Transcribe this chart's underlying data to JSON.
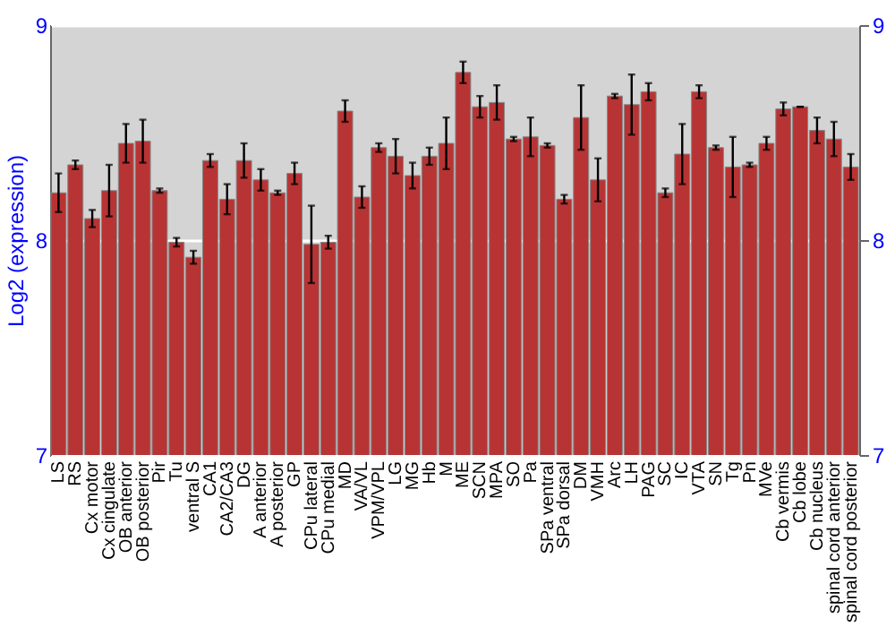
{
  "chart_data": {
    "type": "bar",
    "ylabel": "Log2 (expression)",
    "categories": [
      "LS",
      "RS",
      "Cx motor",
      "Cx cingulate",
      "OB anterior",
      "OB posterior",
      "Pir",
      "Tu",
      "ventral S",
      "CA1",
      "CA2/CA3",
      "DG",
      "A anterior",
      "A posterior",
      "GP",
      "CPu lateral",
      "CPu medial",
      "MD",
      "VA/VL",
      "VPM/VPL",
      "LG",
      "MG",
      "Hb",
      "M",
      "ME",
      "SCN",
      "MPA",
      "SO",
      "Pa",
      "SPa ventral",
      "SPa dorsal",
      "DM",
      "VMH",
      "Arc",
      "LH",
      "PAG",
      "SC",
      "IC",
      "VTA",
      "SN",
      "Tg",
      "Pn",
      "MVe",
      "Cb vermis",
      "Cb lobe",
      "Cb nucleus",
      "spinal cord anterior",
      "spinal cord posterior"
    ],
    "values": [
      8.22,
      8.35,
      8.1,
      8.23,
      8.45,
      8.46,
      8.23,
      7.99,
      7.92,
      8.37,
      8.19,
      8.37,
      8.28,
      8.22,
      8.31,
      7.98,
      7.99,
      8.6,
      8.2,
      8.43,
      8.39,
      8.3,
      8.39,
      8.45,
      8.78,
      8.62,
      8.64,
      8.47,
      8.48,
      8.44,
      8.19,
      8.57,
      8.28,
      8.67,
      8.63,
      8.69,
      8.22,
      8.4,
      8.69,
      8.43,
      8.34,
      8.35,
      8.45,
      8.61,
      8.62,
      8.51,
      8.47,
      8.34
    ],
    "errors": [
      0.09,
      0.02,
      0.04,
      0.12,
      0.09,
      0.1,
      0.01,
      0.02,
      0.03,
      0.03,
      0.07,
      0.08,
      0.05,
      0.01,
      0.05,
      0.18,
      0.03,
      0.05,
      0.05,
      0.02,
      0.08,
      0.06,
      0.04,
      0.12,
      0.05,
      0.05,
      0.08,
      0.01,
      0.09,
      0.01,
      0.02,
      0.15,
      0.1,
      0.01,
      0.14,
      0.04,
      0.02,
      0.14,
      0.03,
      0.01,
      0.14,
      0.01,
      0.03,
      0.03,
      0,
      0.06,
      0.08,
      0.06
    ],
    "color": "#b83434",
    "ylim": [
      7,
      9
    ],
    "yticks": [
      7,
      8,
      9
    ],
    "y2lim": [
      7,
      9
    ],
    "y2ticks": [
      7,
      8,
      9
    ],
    "grid": "y"
  }
}
